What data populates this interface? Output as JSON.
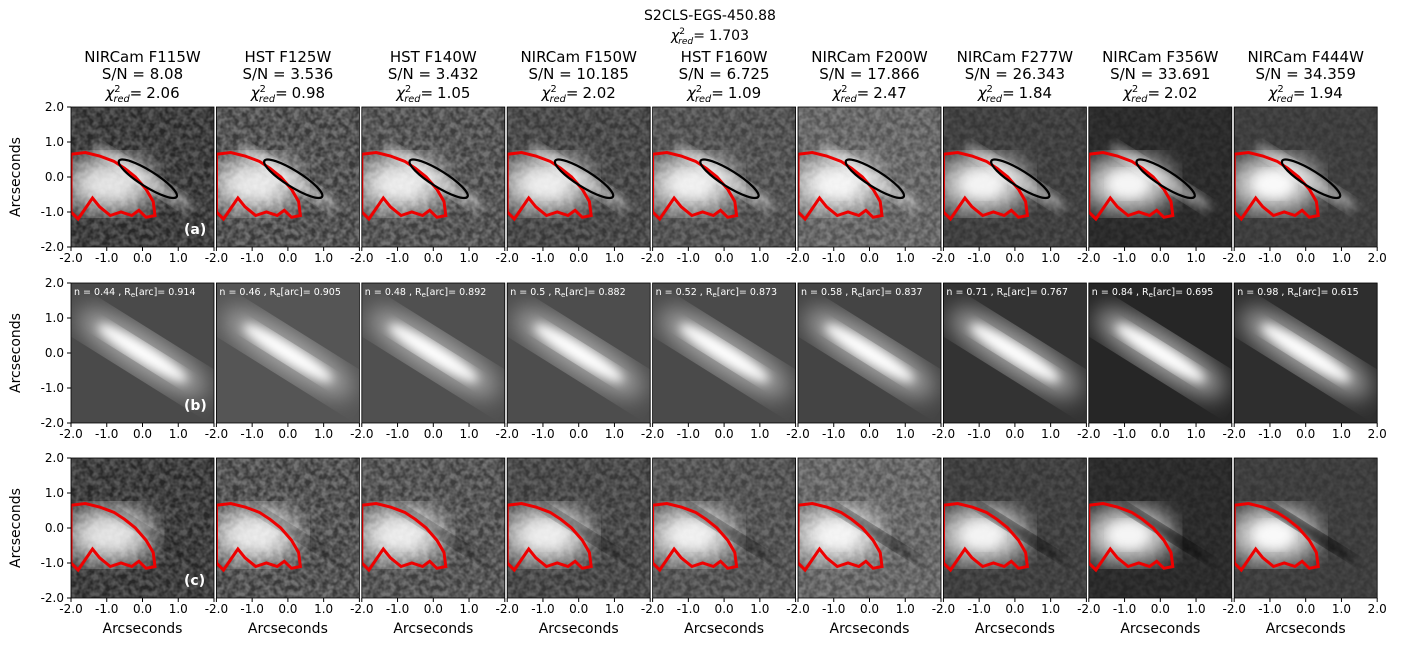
{
  "header": {
    "title": "S2CLS-EGS-450.88",
    "chi2": "1.703"
  },
  "chi2_label": {
    "base": "χ",
    "sup": "2",
    "sub": "red",
    "eq": "="
  },
  "axes": {
    "xlabel": "Arcseconds",
    "ylabel": "Arcseconds",
    "ticks": [
      {
        "value": -2,
        "label": "-2.0"
      },
      {
        "value": -1,
        "label": "-1.0"
      },
      {
        "value": 0,
        "label": "0.0"
      },
      {
        "value": 1,
        "label": "1.0"
      },
      {
        "value": 2,
        "label": "2.0"
      }
    ]
  },
  "rows": [
    "(a)",
    "(b)",
    "(c)"
  ],
  "panels": [
    {
      "filter": "NIRCam F115W",
      "sn": "S/N = 8.08",
      "chi2": "2.06",
      "model": [
        "n = 0.44 , R",
        "e",
        "[arc]= 0.914"
      ]
    },
    {
      "filter": "HST F125W",
      "sn": "S/N = 3.536",
      "chi2": "0.98",
      "model": [
        "n = 0.46 , R",
        "e",
        "[arc]= 0.905"
      ]
    },
    {
      "filter": "HST F140W",
      "sn": "S/N = 3.432",
      "chi2": "1.05",
      "model": [
        "n = 0.48 , R",
        "e",
        "[arc]= 0.892"
      ]
    },
    {
      "filter": "NIRCam F150W",
      "sn": "S/N = 10.185",
      "chi2": "2.02",
      "model": [
        "n = 0.5 , R",
        "e",
        "[arc]= 0.882"
      ]
    },
    {
      "filter": "HST F160W",
      "sn": "S/N = 6.725",
      "chi2": "1.09",
      "model": [
        "n = 0.52 , R",
        "e",
        "[arc]= 0.873"
      ]
    },
    {
      "filter": "NIRCam F200W",
      "sn": "S/N = 17.866",
      "chi2": "2.47",
      "model": [
        "n = 0.58 , R",
        "e",
        "[arc]= 0.837"
      ]
    },
    {
      "filter": "NIRCam F277W",
      "sn": "S/N = 26.343",
      "chi2": "1.84",
      "model": [
        "n = 0.71 , R",
        "e",
        "[arc]= 0.767"
      ]
    },
    {
      "filter": "NIRCam F356W",
      "sn": "S/N = 33.691",
      "chi2": "2.02",
      "model": [
        "n = 0.84 , R",
        "e",
        "[arc]= 0.695"
      ]
    },
    {
      "filter": "NIRCam F444W",
      "sn": "S/N = 34.359",
      "chi2": "1.94",
      "model": [
        "n = 0.98 , R",
        "e",
        "[arc]= 0.615"
      ]
    }
  ]
}
